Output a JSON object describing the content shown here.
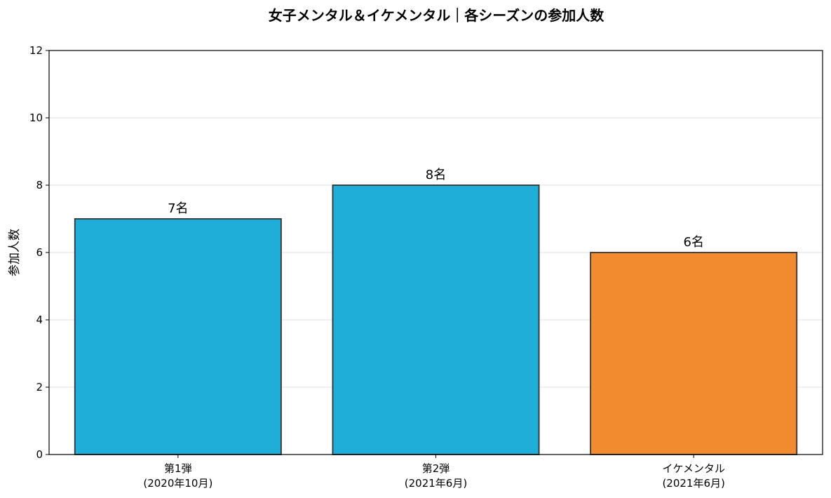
{
  "chart_data": {
    "type": "bar",
    "title": "女子メンタル＆イケメンタル｜各シーズンの参加人数",
    "xlabel": "",
    "ylabel": "参加人数",
    "ylim": [
      0,
      12
    ],
    "yticks": [
      0,
      2,
      4,
      6,
      8,
      10,
      12
    ],
    "grid": true,
    "categories": [
      [
        "第1弾",
        "(2020年10月)"
      ],
      [
        "第2弾",
        "(2021年6月)"
      ],
      [
        "イケメンタル",
        "(2021年6月)"
      ]
    ],
    "values": [
      7,
      8,
      6
    ],
    "data_labels": [
      "7名",
      "8名",
      "6名"
    ],
    "colors": [
      "#1eaed8",
      "#1eaed8",
      "#f28a30"
    ]
  }
}
